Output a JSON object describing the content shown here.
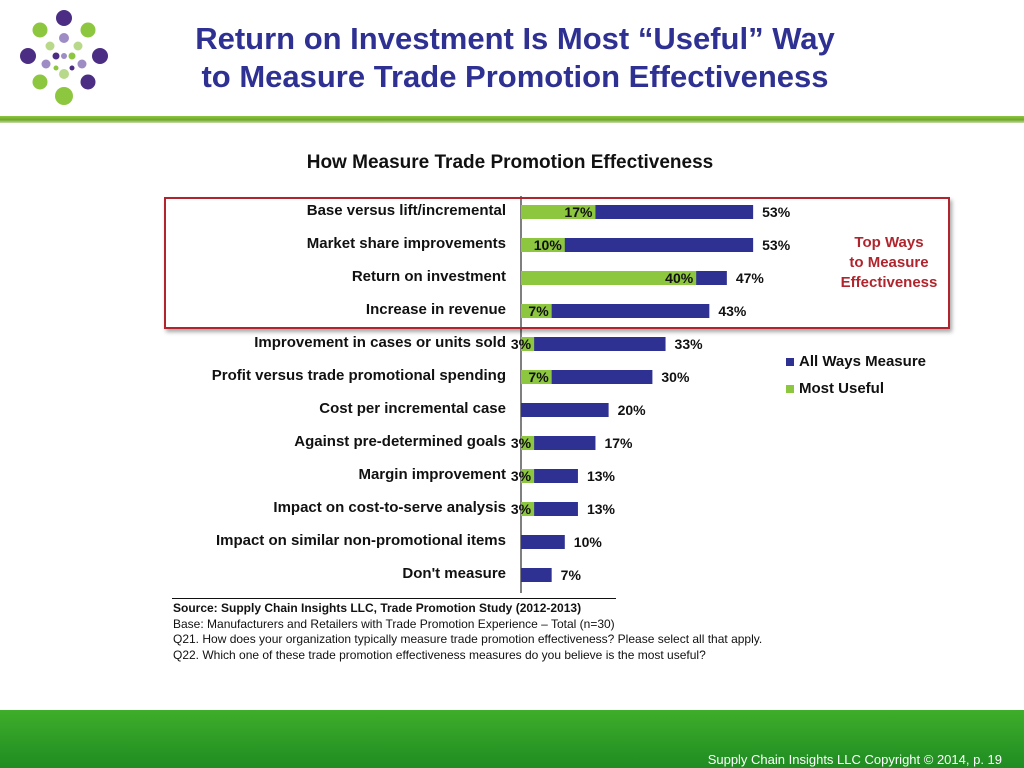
{
  "slide": {
    "title_line1": "Return on Investment Is Most “Useful” Way",
    "title_line2": "to Measure Trade Promotion Effectiveness",
    "footer": "Supply Chain Insights LLC Copyright © 2014, p. 19"
  },
  "colors": {
    "title": "#2e3192",
    "all_ways": "#2e3192",
    "most_useful": "#8dc63f",
    "highlight_box": "#b0252d",
    "footer_band": "#2ea32a"
  },
  "callout": {
    "line1": "Top Ways",
    "line2": "to Measure",
    "line3": "Effectiveness"
  },
  "source_notes": [
    "Source:  Supply Chain Insights LLC, Trade Promotion Study (2012-2013)",
    "Base:  Manufacturers and Retailers with Trade Promotion Experience – Total (n=30)",
    "Q21. How does your organization typically measure trade promotion effectiveness? Please select all that apply.",
    "Q22. Which one of these trade promotion effectiveness measures do you believe is the most useful?"
  ],
  "chart_data": {
    "type": "bar",
    "orientation": "horizontal",
    "title": "How Measure Trade Promotion Effectiveness",
    "categories": [
      "Base versus lift/incremental",
      "Market share improvements",
      "Return on investment",
      "Increase in revenue",
      "Improvement in cases or units sold",
      "Profit versus trade promotional spending",
      "Cost per incremental case",
      "Against pre-determined goals",
      "Margin improvement",
      "Impact on cost-to-serve analysis",
      "Impact on similar non-promotional items",
      "Don't measure"
    ],
    "series": [
      {
        "name": "All Ways Measure",
        "values": [
          53,
          53,
          47,
          43,
          33,
          30,
          20,
          17,
          13,
          13,
          10,
          7
        ],
        "labels": [
          "53%",
          "53%",
          "47%",
          "43%",
          "33%",
          "30%",
          "20%",
          "17%",
          "13%",
          "13%",
          "10%",
          "7%"
        ]
      },
      {
        "name": "Most Useful",
        "values": [
          17,
          10,
          40,
          7,
          3,
          7,
          0,
          3,
          3,
          3,
          0,
          0
        ],
        "labels": [
          "17%",
          "10%",
          "40%",
          "7%",
          "3%",
          "7%",
          "",
          "3%",
          "3%",
          "3%",
          "",
          ""
        ]
      }
    ],
    "highlighted_categories": 4,
    "legend_position": "right",
    "grid": false,
    "xlim": [
      0,
      100
    ]
  }
}
